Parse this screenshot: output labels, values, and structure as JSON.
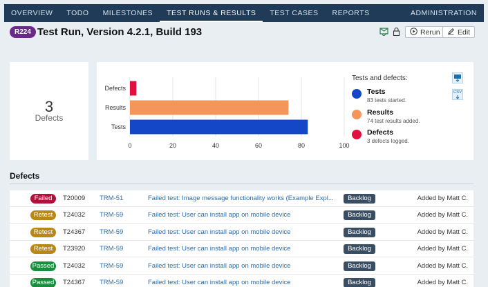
{
  "nav": {
    "items": [
      "OVERVIEW",
      "TODO",
      "MILESTONES",
      "TEST RUNS & RESULTS",
      "TEST CASES",
      "REPORTS"
    ],
    "active_index": 3,
    "admin": "ADMINISTRATION"
  },
  "header": {
    "badge": "R224",
    "title": "Test Run, Version 4.2.1, Build 193",
    "rerun_label": "Rerun",
    "edit_label": "Edit"
  },
  "summary": {
    "count": "3",
    "label": "Defects"
  },
  "colors": {
    "tests": "#1446c8",
    "results": "#f4955a",
    "defects": "#e0103f"
  },
  "chart_data": {
    "type": "bar",
    "orientation": "horizontal",
    "categories": [
      "Defects",
      "Results",
      "Tests"
    ],
    "values": [
      3,
      74,
      83
    ],
    "xlim": [
      0,
      100
    ],
    "xticks": [
      "0",
      "20",
      "40",
      "60",
      "80",
      "100"
    ],
    "grid": true
  },
  "legend": {
    "title": "Tests and defects:",
    "items": [
      {
        "name": "Tests",
        "sub": "83 tests started."
      },
      {
        "name": "Results",
        "sub": "74 test results added."
      },
      {
        "name": "Defects",
        "sub": "3 defects logged."
      }
    ],
    "export_labels": [
      "",
      "CSV"
    ]
  },
  "defects": {
    "title": "Defects",
    "rows": [
      {
        "status": "Failed",
        "status_color": "#b0123b",
        "id": "T20009",
        "ref": "TRM-51",
        "title": "Failed test: Image message functionality works (Example Expl...",
        "badge": "Backlog",
        "added": "Added by Matt C."
      },
      {
        "status": "Retest",
        "status_color": "#b8871a",
        "id": "T24032",
        "ref": "TRM-59",
        "title": "Failed test: User can install app on mobile device",
        "badge": "Backlog",
        "added": "Added by Matt C."
      },
      {
        "status": "Retest",
        "status_color": "#b8871a",
        "id": "T24367",
        "ref": "TRM-59",
        "title": "Failed test: User can install app on mobile device",
        "badge": "Backlog",
        "added": "Added by Matt C."
      },
      {
        "status": "Retest",
        "status_color": "#b8871a",
        "id": "T23920",
        "ref": "TRM-59",
        "title": "Failed test: User can install app on mobile device",
        "badge": "Backlog",
        "added": "Added by Matt C."
      },
      {
        "status": "Passed",
        "status_color": "#1e8a3c",
        "id": "T24032",
        "ref": "TRM-59",
        "title": "Failed test: User can install app on mobile device",
        "badge": "Backlog",
        "added": "Added by Matt C."
      },
      {
        "status": "Passed",
        "status_color": "#1e8a3c",
        "id": "T24367",
        "ref": "TRM-59",
        "title": "Failed test: User can install app on mobile device",
        "badge": "Backlog",
        "added": "Added by Matt C."
      }
    ]
  }
}
